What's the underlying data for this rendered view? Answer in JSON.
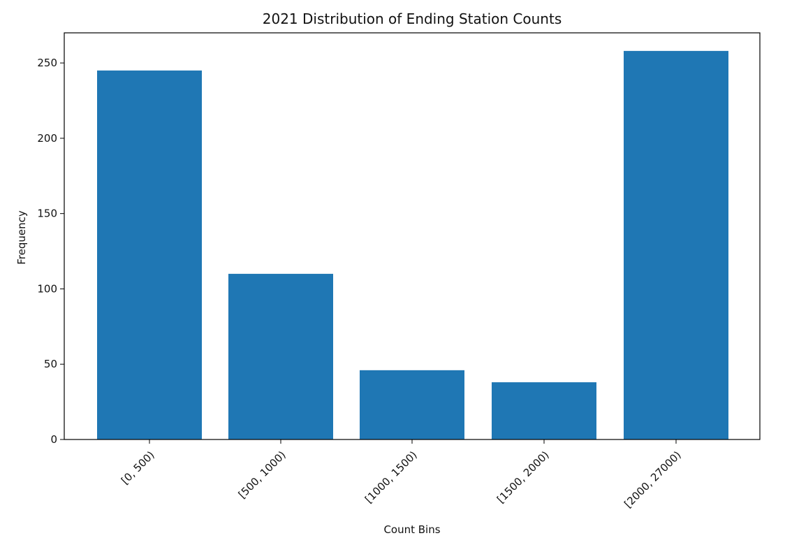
{
  "chart_data": {
    "type": "bar",
    "title": "2021 Distribution of Ending Station Counts",
    "xlabel": "Count Bins",
    "ylabel": "Frequency",
    "categories": [
      "[0, 500)",
      "[500, 1000)",
      "[1000, 1500)",
      "[1500, 2000)",
      "[2000, 27000)"
    ],
    "values": [
      245,
      110,
      46,
      38,
      258
    ],
    "ylim": [
      0,
      270
    ],
    "yticks": [
      0,
      50,
      100,
      150,
      200,
      250
    ],
    "grid": false,
    "colors": {
      "bar": "#1f77b4",
      "axis": "#000000"
    }
  }
}
